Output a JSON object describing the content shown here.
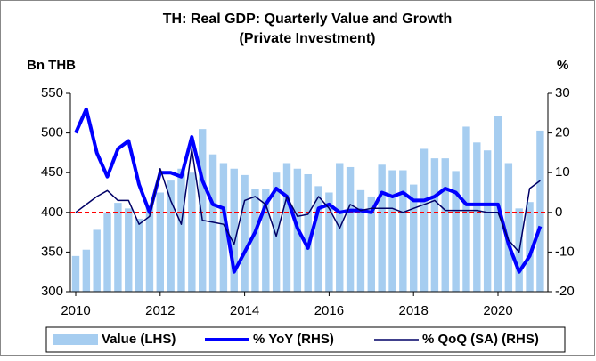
{
  "chart_data": {
    "type": "bar_line",
    "title": "TH: Real GDP: Quarterly Value and Growth",
    "subtitle": "(Private Investment)",
    "y_label": "Bn THB",
    "y2_label": "%",
    "categories": [
      "2010",
      null,
      null,
      null,
      null,
      null,
      null,
      null,
      "2012",
      null,
      null,
      null,
      null,
      null,
      null,
      null,
      "2014",
      null,
      null,
      null,
      null,
      null,
      null,
      null,
      "2016",
      null,
      null,
      null,
      null,
      null,
      null,
      null,
      "2018",
      null,
      null,
      null,
      null,
      null,
      null,
      null,
      "2020",
      null,
      null,
      null,
      null
    ],
    "series": [
      {
        "name": "Value (LHS)",
        "color": "#a6cdf0",
        "kind": "bar",
        "axis": "y",
        "values": [
          345,
          353,
          378,
          400,
          412,
          405,
          392,
          408,
          425,
          440,
          455,
          450,
          505,
          473,
          462,
          455,
          447,
          430,
          430,
          450,
          462,
          455,
          448,
          433,
          425,
          462,
          457,
          428,
          420,
          460,
          453,
          453,
          435,
          480,
          468,
          468,
          452,
          508,
          488,
          478,
          521,
          462,
          405,
          413,
          503
        ]
      },
      {
        "name": "% YoY (RHS)",
        "color": "#0000ff",
        "kind": "line",
        "width": 4,
        "axis": "y2",
        "values": [
          20,
          26,
          15,
          9,
          16,
          18,
          7,
          0,
          10,
          10,
          9,
          19,
          8,
          2,
          1,
          -15,
          -10,
          -5,
          2,
          6,
          4,
          -4,
          -9,
          1,
          2,
          0,
          0.5,
          0.5,
          0,
          5,
          4,
          5,
          3,
          3,
          4,
          6,
          5,
          2,
          2,
          2,
          2,
          -8,
          -15,
          -11,
          -3.5
        ]
      },
      {
        "name": "% QoQ (SA) (RHS)",
        "color": "#000066",
        "kind": "line",
        "width": 1.5,
        "axis": "y2",
        "values": [
          0,
          2,
          4,
          5.5,
          3,
          3,
          -3,
          -1,
          11,
          3,
          -3,
          16,
          -2,
          -2.5,
          -3,
          -8,
          3,
          4,
          2,
          -6,
          4,
          -1,
          -0.5,
          4,
          1,
          -4,
          2,
          0.5,
          1,
          1,
          1,
          0,
          1,
          2,
          3,
          0.5,
          0.5,
          0.5,
          0.5,
          0,
          0,
          -7,
          -10,
          6,
          8
        ]
      }
    ],
    "ylim": [
      300,
      550
    ],
    "yticks": [
      300,
      350,
      400,
      450,
      500,
      550
    ],
    "y2lim": [
      -20,
      30
    ],
    "y2ticks": [
      -20,
      -10,
      0,
      10,
      20,
      30
    ],
    "zero_line_color": "#ff0000",
    "legend": "bottom"
  }
}
